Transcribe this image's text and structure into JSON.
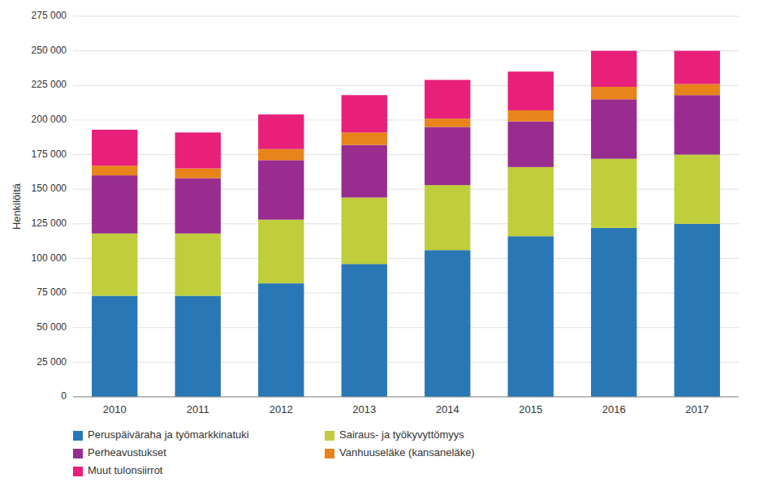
{
  "chart_data": {
    "type": "bar",
    "stacked": true,
    "ylabel": "Henkilöitä",
    "categories": [
      "2010",
      "2011",
      "2012",
      "2013",
      "2014",
      "2015",
      "2016",
      "2017"
    ],
    "series": [
      {
        "name": "Peruspäiväraha ja työmarkkinatuki",
        "color": "#2978B5",
        "values": [
          73000,
          73000,
          82000,
          96000,
          106000,
          116000,
          122000,
          125000
        ]
      },
      {
        "name": "Sairaus- ja työkyvyttömyys",
        "color": "#BFCE3A",
        "values": [
          45000,
          45000,
          46000,
          48000,
          47000,
          50000,
          50000,
          50000
        ]
      },
      {
        "name": "Perheavustukset",
        "color": "#992D8F",
        "values": [
          42000,
          40000,
          43000,
          38000,
          42000,
          33000,
          43000,
          43000
        ]
      },
      {
        "name": "Vanhuuseläke (kansaneläke)",
        "color": "#E8841A",
        "values": [
          7000,
          7000,
          8000,
          9000,
          6000,
          8000,
          9000,
          8000
        ]
      },
      {
        "name": "Muut tulonsiirrot",
        "color": "#E8207A",
        "values": [
          26000,
          26000,
          25000,
          27000,
          28000,
          28000,
          26000,
          24000
        ]
      }
    ],
    "ylim": [
      0,
      275000
    ],
    "yticks": [
      0,
      {
        "value": 25000,
        "label": "25 000"
      },
      {
        "value": 50000,
        "label": "50 000"
      },
      {
        "value": 75000,
        "label": "75 000"
      },
      {
        "value": 100000,
        "label": "100 000"
      },
      {
        "value": 125000,
        "label": "125 000"
      },
      {
        "value": 150000,
        "label": "150 000"
      },
      {
        "value": 175000,
        "label": "175 000"
      },
      {
        "value": 200000,
        "label": "200 000"
      },
      {
        "value": 225000,
        "label": "225 000"
      },
      {
        "value": 250000,
        "label": "250 000"
      },
      {
        "value": 275000,
        "label": "275 000"
      }
    ],
    "grid": true,
    "legend": "bottom"
  }
}
